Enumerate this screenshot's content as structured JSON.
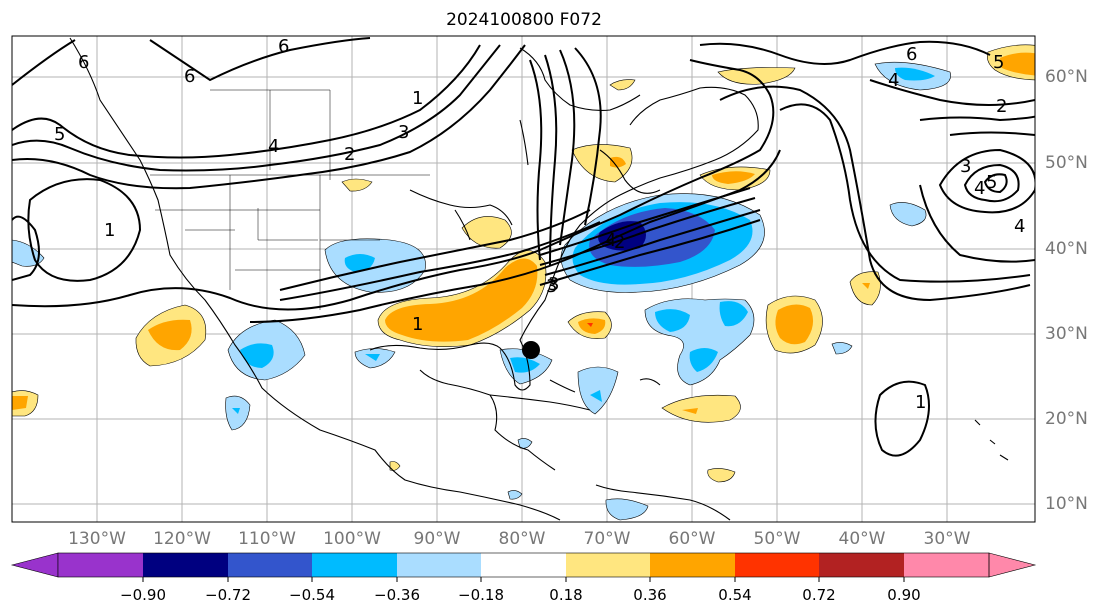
{
  "title": "2024100800 F072",
  "longitude_labels": [
    "130°W",
    "120°W",
    "110°W",
    "100°W",
    "90°W",
    "80°W",
    "70°W",
    "60°W",
    "50°W",
    "40°W",
    "30°W"
  ],
  "latitude_labels": [
    "60°N",
    "50°N",
    "40°N",
    "30°N",
    "20°N",
    "10°N"
  ],
  "colorbar": {
    "ticks": [
      "−0.90",
      "−0.72",
      "−0.54",
      "−0.36",
      "−0.18",
      "0.18",
      "0.36",
      "0.54",
      "0.72",
      "0.90"
    ],
    "colors": [
      "#9933cc",
      "#000080",
      "#3355cc",
      "#00bbff",
      "#aaddff",
      "#ffffff",
      "#ffe680",
      "#ffa500",
      "#ff3300",
      "#b22222",
      "#ff88aa"
    ]
  },
  "contour_labels": [
    "6",
    "6",
    "6",
    "5",
    "4",
    "3",
    "2",
    "1",
    "1",
    "6",
    "5",
    "4",
    "2",
    "3",
    "4",
    "3",
    "4",
    "1",
    "1",
    "2",
    "3",
    "4",
    "5"
  ],
  "colors": {
    "land_line": "#000000",
    "grid": "#b3b3b3",
    "contour": "#000000"
  },
  "storm_marker": "filled-circle"
}
